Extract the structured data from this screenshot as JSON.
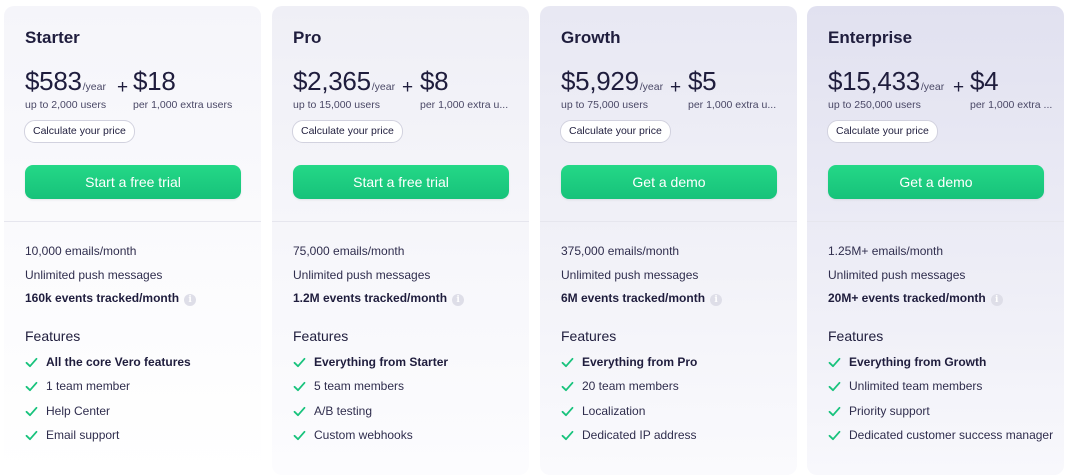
{
  "plans": [
    {
      "name": "Starter",
      "base_price": "$583",
      "per_year": "/year",
      "base_users": "up to 2,000 users",
      "plus": "+",
      "extra_price": "$18",
      "extra_users": "per 1,000 extra users",
      "calc_label": "Calculate your price",
      "cta_label": "Start a free trial",
      "quotas": [
        "10,000 emails/month",
        "Unlimited push messages",
        "160k events tracked/month"
      ],
      "info_icon": "i",
      "features_heading": "Features",
      "features": [
        "All the core Vero features",
        "1 team member",
        "Help Center",
        "Email support"
      ]
    },
    {
      "name": "Pro",
      "base_price": "$2,365",
      "per_year": "/year",
      "base_users": "up to 15,000 users",
      "plus": "+",
      "extra_price": "$8",
      "extra_users": "per 1,000 extra u...",
      "calc_label": "Calculate your price",
      "cta_label": "Start a free trial",
      "quotas": [
        "75,000 emails/month",
        "Unlimited push messages",
        "1.2M events tracked/month"
      ],
      "info_icon": "i",
      "features_heading": "Features",
      "features": [
        "Everything from Starter",
        "5 team members",
        "A/B testing",
        "Custom webhooks"
      ]
    },
    {
      "name": "Growth",
      "base_price": "$5,929",
      "per_year": "/year",
      "base_users": "up to 75,000 users",
      "plus": "+",
      "extra_price": "$5",
      "extra_users": "per 1,000 extra u...",
      "calc_label": "Calculate your price",
      "cta_label": "Get a demo",
      "quotas": [
        "375,000 emails/month",
        "Unlimited push messages",
        "6M events tracked/month"
      ],
      "info_icon": "i",
      "features_heading": "Features",
      "features": [
        "Everything from Pro",
        "20 team members",
        "Localization",
        "Dedicated IP address"
      ]
    },
    {
      "name": "Enterprise",
      "base_price": "$15,433",
      "per_year": "/year",
      "base_users": "up to 250,000 users",
      "plus": "+",
      "extra_price": "$4",
      "extra_users": "per 1,000 extra ...",
      "calc_label": "Calculate your price",
      "cta_label": "Get a demo",
      "quotas": [
        "1.25M+ emails/month",
        "Unlimited push messages",
        "20M+ events tracked/month"
      ],
      "info_icon": "i",
      "features_heading": "Features",
      "features": [
        "Everything from Growth",
        "Unlimited team members",
        "Priority support",
        "Dedicated customer success manager"
      ]
    }
  ],
  "colors": {
    "accent_green": "#1bcb7f",
    "check_green": "#19c37d",
    "text_dark": "#1f1d3d"
  },
  "icons": {
    "check": "check-icon",
    "info": "info-icon"
  }
}
